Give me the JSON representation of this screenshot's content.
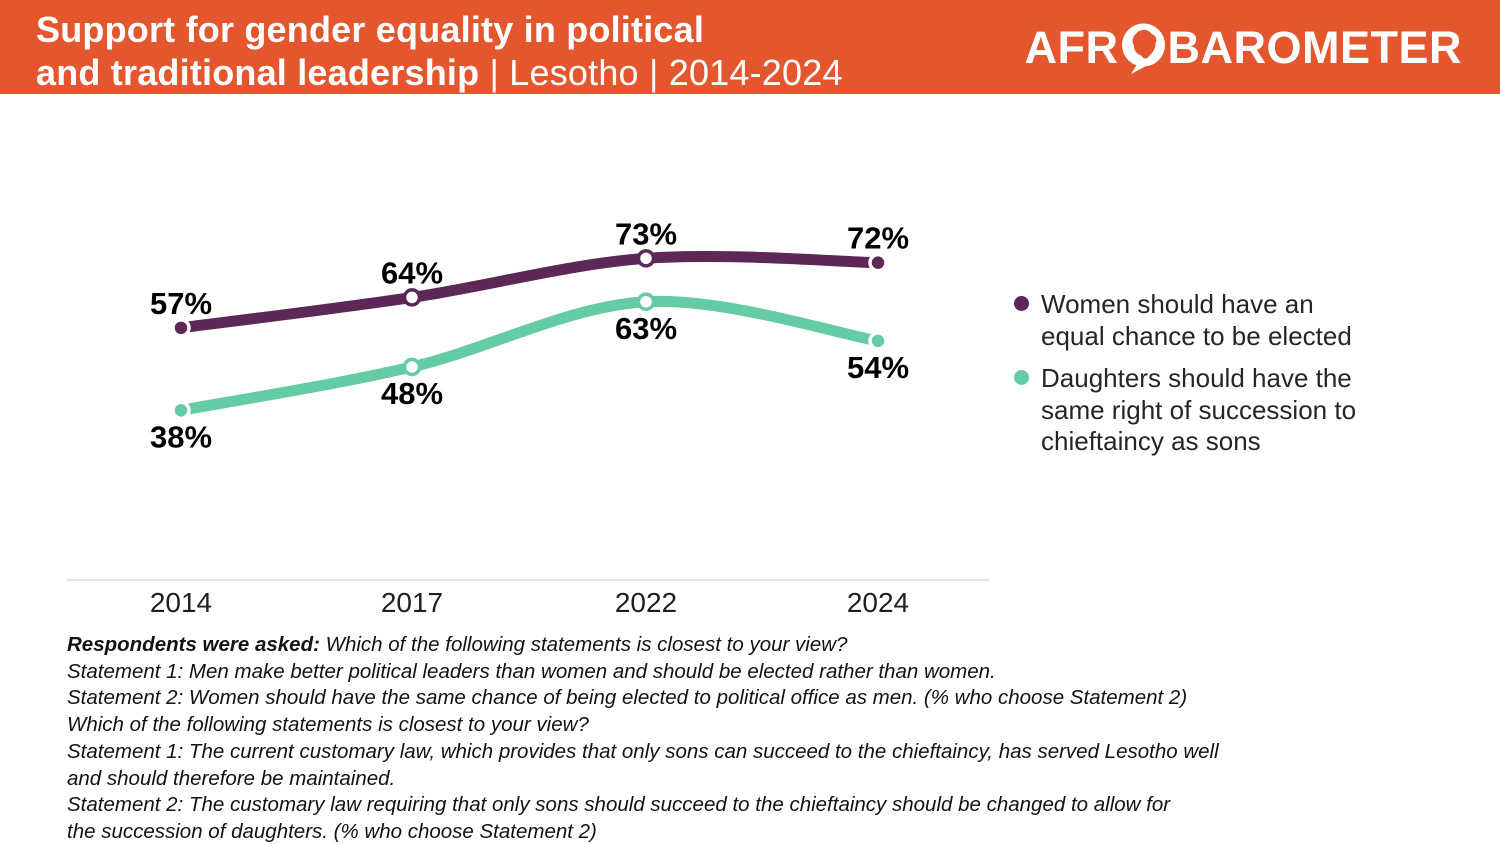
{
  "header": {
    "title_line1": "Support for gender equality in political",
    "title_line2_bold": "and traditional leadership",
    "title_line2_rest": " | Lesotho | 2014-2024",
    "logo_prefix": "AFR",
    "logo_suffix": "BAROMETER"
  },
  "colors": {
    "header_bg": "#E4572E",
    "logo_icon_map": "#E4572E",
    "series_women": "#5D2857",
    "series_daughters": "#64CBA2",
    "axis_line": "#DCDCDC",
    "value_label": "#000000",
    "tick_label": "#1F1F1F",
    "legend_text": "#262626",
    "footnote_text": "#121212",
    "title_text": "#FFFFFF"
  },
  "chart_data": {
    "type": "line",
    "title": "Support for gender equality in political and traditional leadership | Lesotho | 2014-2024",
    "categories": [
      "2014",
      "2017",
      "2022",
      "2024"
    ],
    "series": [
      {
        "name": "Women should have an equal chance to be elected",
        "legend_label": "Women should have an\nequal chance to be elected",
        "values": [
          57,
          64,
          73,
          72
        ],
        "color": "#5D2857",
        "label_position": "above"
      },
      {
        "name": "Daughters should have the same right of succession to chieftaincy as sons",
        "legend_label": "Daughters should have the\nsame right of succession to\nchieftaincy as sons",
        "values": [
          38,
          48,
          63,
          54
        ],
        "color": "#64CBA2",
        "label_position": "below"
      }
    ],
    "value_suffix": "%",
    "ylim": [
      0,
      100
    ],
    "grid": false,
    "legend_position": "right",
    "xlabel": "",
    "ylabel": ""
  },
  "footnote": {
    "lines": [
      {
        "bold": "Respondents were asked:",
        "text": " Which of the following statements is closest to your view?"
      },
      {
        "text": "Statement 1: Men make better political leaders than women and should be elected rather than women."
      },
      {
        "text": "Statement 2: Women should have the same chance of being elected to political office as men. (% who choose Statement 2)"
      },
      {
        "text": "Which of the following statements is closest to your view?"
      },
      {
        "text": "Statement 1: The current customary law, which provides that only sons can succeed to the chieftaincy, has served Lesotho well"
      },
      {
        "text": "and should therefore be maintained."
      },
      {
        "text": "Statement 2: The customary law requiring that only sons should succeed to the chieftaincy should be changed to allow for"
      },
      {
        "text": "the succession of daughters. (% who choose Statement 2)"
      }
    ]
  }
}
